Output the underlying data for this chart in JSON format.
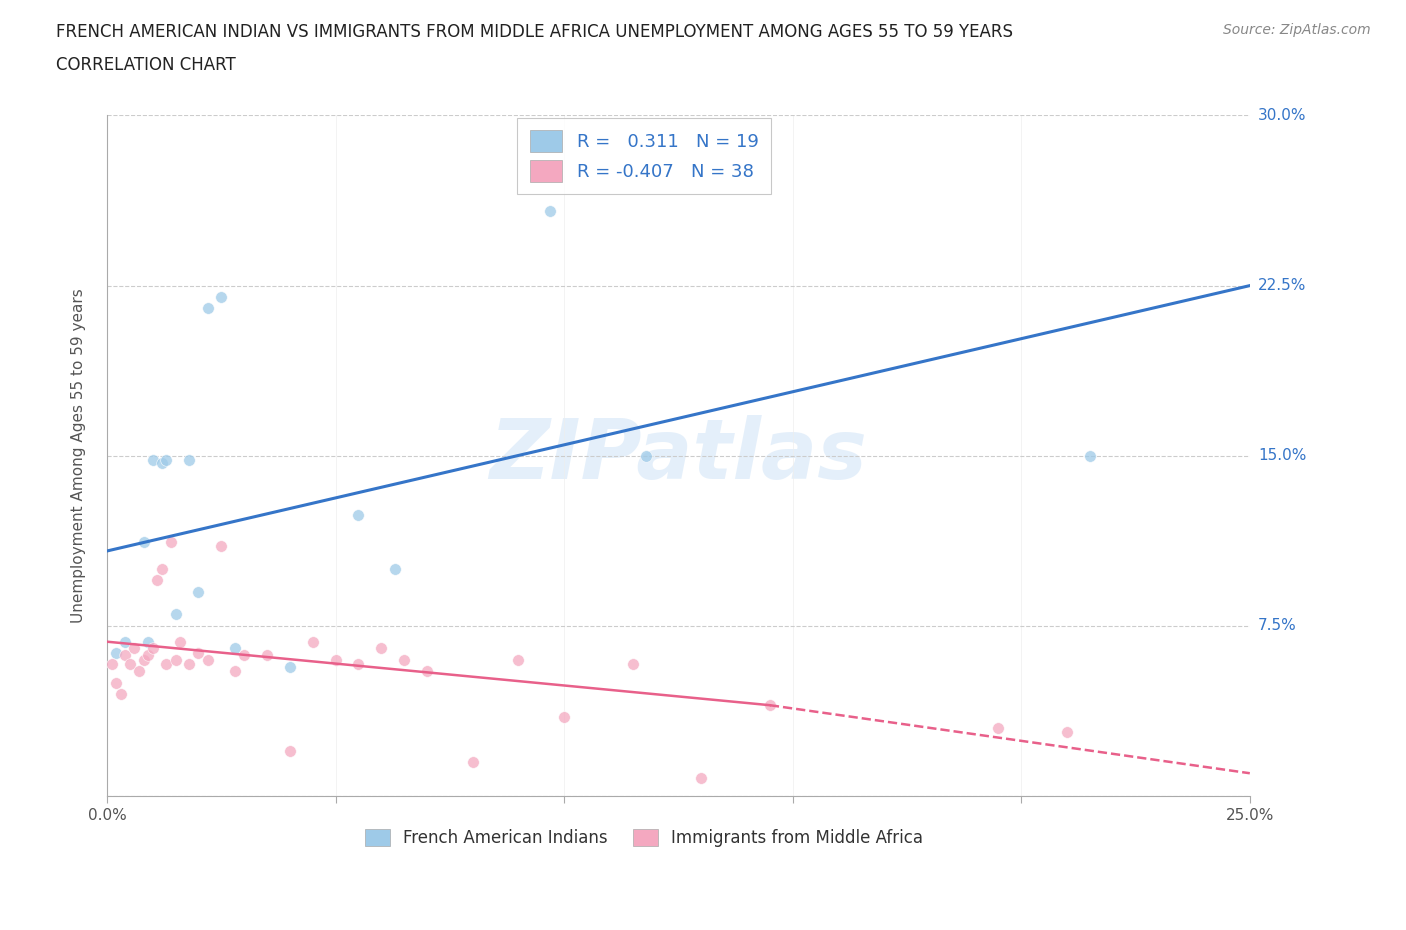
{
  "title_line1": "FRENCH AMERICAN INDIAN VS IMMIGRANTS FROM MIDDLE AFRICA UNEMPLOYMENT AMONG AGES 55 TO 59 YEARS",
  "title_line2": "CORRELATION CHART",
  "source": "Source: ZipAtlas.com",
  "xlabel": "",
  "ylabel": "Unemployment Among Ages 55 to 59 years",
  "xlim": [
    0.0,
    0.25
  ],
  "ylim": [
    0.0,
    0.3
  ],
  "xticks": [
    0.0,
    0.05,
    0.1,
    0.15,
    0.2,
    0.25
  ],
  "xtick_labels": [
    "0.0%",
    "",
    "",
    "",
    "",
    "25.0%"
  ],
  "yticks": [
    0.0,
    0.075,
    0.15,
    0.225,
    0.3
  ],
  "ytick_labels": [
    "",
    "7.5%",
    "15.0%",
    "22.5%",
    "30.0%"
  ],
  "blue_scatter_x": [
    0.002,
    0.004,
    0.008,
    0.009,
    0.01,
    0.012,
    0.013,
    0.015,
    0.018,
    0.02,
    0.022,
    0.025,
    0.028,
    0.04,
    0.055,
    0.063,
    0.097,
    0.118,
    0.215
  ],
  "blue_scatter_y": [
    0.063,
    0.068,
    0.112,
    0.068,
    0.148,
    0.147,
    0.148,
    0.08,
    0.148,
    0.09,
    0.215,
    0.22,
    0.065,
    0.057,
    0.124,
    0.1,
    0.258,
    0.15,
    0.15
  ],
  "pink_scatter_x": [
    0.001,
    0.002,
    0.003,
    0.004,
    0.005,
    0.006,
    0.007,
    0.008,
    0.009,
    0.01,
    0.011,
    0.012,
    0.013,
    0.014,
    0.015,
    0.016,
    0.018,
    0.02,
    0.022,
    0.025,
    0.028,
    0.03,
    0.035,
    0.04,
    0.045,
    0.05,
    0.055,
    0.06,
    0.065,
    0.07,
    0.08,
    0.09,
    0.1,
    0.115,
    0.13,
    0.145,
    0.195,
    0.21
  ],
  "pink_scatter_y": [
    0.058,
    0.05,
    0.045,
    0.062,
    0.058,
    0.065,
    0.055,
    0.06,
    0.062,
    0.065,
    0.095,
    0.1,
    0.058,
    0.112,
    0.06,
    0.068,
    0.058,
    0.063,
    0.06,
    0.11,
    0.055,
    0.062,
    0.062,
    0.02,
    0.068,
    0.06,
    0.058,
    0.065,
    0.06,
    0.055,
    0.015,
    0.06,
    0.035,
    0.058,
    0.008,
    0.04,
    0.03,
    0.028
  ],
  "blue_R": 0.311,
  "blue_N": 19,
  "pink_R": -0.407,
  "pink_N": 38,
  "blue_line_x0": 0.0,
  "blue_line_x1": 0.25,
  "blue_line_y0": 0.108,
  "blue_line_y1": 0.225,
  "pink_line_solid_x0": 0.0,
  "pink_line_solid_x1": 0.145,
  "pink_line_y0": 0.068,
  "pink_line_y1": 0.04,
  "pink_line_dash_x0": 0.145,
  "pink_line_dash_x1": 0.25,
  "pink_line_dash_y0": 0.04,
  "pink_line_dash_y1": 0.01,
  "blue_color": "#9ecae8",
  "pink_color": "#f4a8c0",
  "blue_line_color": "#3575c8",
  "pink_line_color": "#e8608a",
  "watermark": "ZIPatlas",
  "background_color": "#ffffff",
  "grid_color": "#cccccc",
  "title_fontsize": 12,
  "label_fontsize": 11,
  "tick_fontsize": 11,
  "scatter_size": 70
}
